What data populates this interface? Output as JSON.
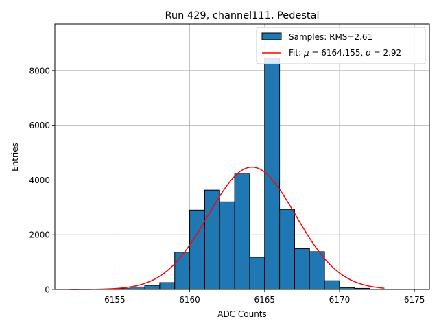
{
  "chart_data": {
    "type": "bar",
    "title": "Run 429, channel111, Pedestal",
    "xlabel": "ADC Counts",
    "ylabel": "Entries",
    "xlim": [
      6151.0,
      6176.0
    ],
    "ylim": [
      0,
      9700
    ],
    "xticks": [
      6155,
      6160,
      6165,
      6170,
      6175
    ],
    "yticks": [
      0,
      2000,
      4000,
      6000,
      8000
    ],
    "grid": true,
    "legend_position": "top-right",
    "histogram": {
      "name": "Samples: RMS=2.61",
      "color": "#1f77b4",
      "bins": [
        {
          "x0": 6155.0,
          "x1": 6156.0,
          "count": 30
        },
        {
          "x0": 6156.0,
          "x1": 6157.0,
          "count": 90
        },
        {
          "x0": 6157.0,
          "x1": 6158.0,
          "count": 150
        },
        {
          "x0": 6158.0,
          "x1": 6159.0,
          "count": 250
        },
        {
          "x0": 6159.0,
          "x1": 6160.0,
          "count": 1360
        },
        {
          "x0": 6160.0,
          "x1": 6161.0,
          "count": 2900
        },
        {
          "x0": 6161.0,
          "x1": 6162.0,
          "count": 3630
        },
        {
          "x0": 6162.0,
          "x1": 6163.0,
          "count": 3200
        },
        {
          "x0": 6163.0,
          "x1": 6164.0,
          "count": 4240
        },
        {
          "x0": 6164.0,
          "x1": 6165.0,
          "count": 1180
        },
        {
          "x0": 6165.0,
          "x1": 6166.0,
          "count": 8450
        },
        {
          "x0": 6166.0,
          "x1": 6167.0,
          "count": 2930
        },
        {
          "x0": 6167.0,
          "x1": 6168.0,
          "count": 1490
        },
        {
          "x0": 6168.0,
          "x1": 6169.0,
          "count": 1380
        },
        {
          "x0": 6169.0,
          "x1": 6170.0,
          "count": 320
        },
        {
          "x0": 6170.0,
          "x1": 6171.0,
          "count": 70
        },
        {
          "x0": 6171.0,
          "x1": 6172.0,
          "count": 40
        },
        {
          "x0": 6172.0,
          "x1": 6173.0,
          "count": 10
        }
      ]
    },
    "fit": {
      "name_prefix": "Fit: ",
      "mu_symbol": "μ",
      "sigma_symbol": "σ",
      "mu_text": " = 6164.155, ",
      "sigma_text": " = 2.92",
      "color": "#ff0000",
      "mu": 6164.155,
      "sigma": 2.92,
      "amplitude": 4470,
      "x_range": [
        6152.0,
        6173.0
      ]
    }
  }
}
